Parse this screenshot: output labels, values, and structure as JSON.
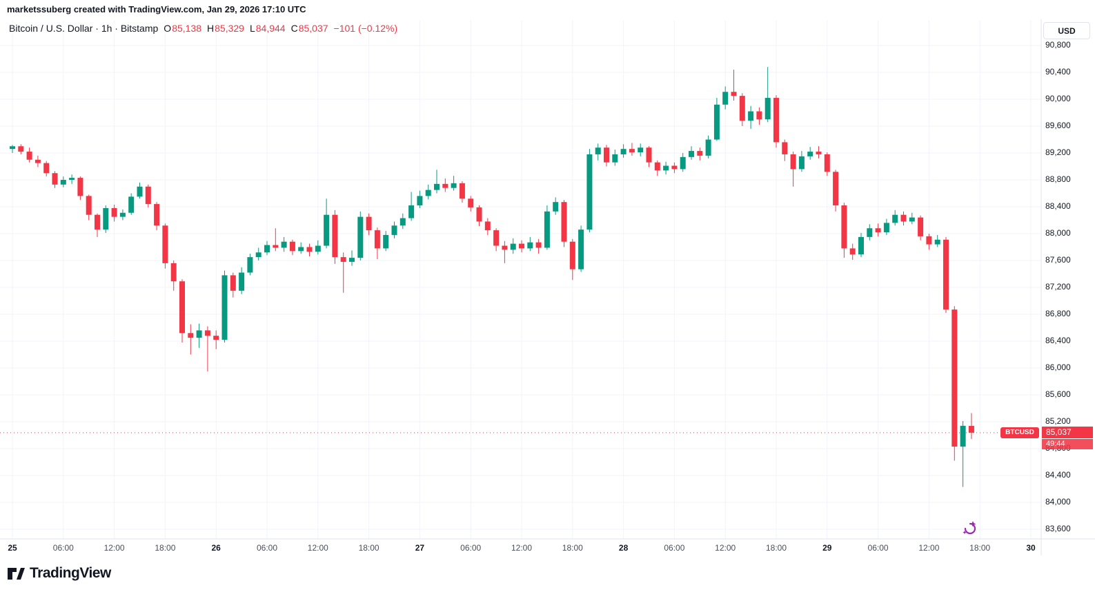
{
  "attribution": "marketssuberg created with TradingView.com, Jan 29, 2026 17:10 UTC",
  "header": {
    "series_line": "Bitcoin / U.S. Dollar · 1h · Bitstamp",
    "o_label": "O",
    "o_value": "85,138",
    "h_label": "H",
    "h_value": "85,329",
    "l_label": "L",
    "l_value": "84,944",
    "c_label": "C",
    "c_value": "85,037",
    "change": "−101 (−0.12%)"
  },
  "price_axis": {
    "currency": "USD",
    "badge": {
      "symbol": "BTCUSD",
      "price": "85,037",
      "countdown": "49:44"
    }
  },
  "footer": {
    "logo_text": "TradingView"
  },
  "colors": {
    "up": "#089981",
    "down": "#F23645",
    "text": "#131722",
    "muted": "#4a4e59",
    "grid": "#F0F3FA",
    "axis_border": "#E0E3EB",
    "purple": "#9C27B0"
  },
  "chart_data": {
    "type": "candlestick",
    "title": "Bitcoin / U.S. Dollar",
    "symbol": "BTCUSD",
    "interval": "1h",
    "exchange": "Bitstamp",
    "unit": "USD",
    "last_price": 85037,
    "current_ohlc": {
      "open": 85138,
      "high": 85329,
      "low": 84944,
      "close": 85037,
      "change": -101,
      "change_pct": -0.12
    },
    "y_range": [
      83600,
      90800
    ],
    "y_step": 400,
    "grid": true,
    "y_ticks": [
      "90,800",
      "90,400",
      "90,000",
      "89,600",
      "89,200",
      "88,800",
      "88,400",
      "88,000",
      "87,600",
      "87,200",
      "86,800",
      "86,400",
      "86,000",
      "85,600",
      "85,200",
      "84,800",
      "84,400",
      "84,000",
      "83,600"
    ],
    "x_ticks": [
      {
        "text": "25",
        "index": 0,
        "major": true
      },
      {
        "text": "06:00",
        "index": 6,
        "major": false
      },
      {
        "text": "12:00",
        "index": 12,
        "major": false
      },
      {
        "text": "18:00",
        "index": 18,
        "major": false
      },
      {
        "text": "26",
        "index": 24,
        "major": true
      },
      {
        "text": "06:00",
        "index": 30,
        "major": false
      },
      {
        "text": "12:00",
        "index": 36,
        "major": false
      },
      {
        "text": "18:00",
        "index": 42,
        "major": false
      },
      {
        "text": "27",
        "index": 48,
        "major": true
      },
      {
        "text": "06:00",
        "index": 54,
        "major": false
      },
      {
        "text": "12:00",
        "index": 60,
        "major": false
      },
      {
        "text": "18:00",
        "index": 66,
        "major": false
      },
      {
        "text": "28",
        "index": 72,
        "major": true
      },
      {
        "text": "06:00",
        "index": 78,
        "major": false
      },
      {
        "text": "12:00",
        "index": 84,
        "major": false
      },
      {
        "text": "18:00",
        "index": 90,
        "major": false
      },
      {
        "text": "29",
        "index": 96,
        "major": true
      },
      {
        "text": "06:00",
        "index": 102,
        "major": false
      },
      {
        "text": "12:00",
        "index": 108,
        "major": false
      },
      {
        "text": "18:00",
        "index": 114,
        "major": false
      },
      {
        "text": "30",
        "index": 120,
        "major": true
      }
    ],
    "first_candle_time": "Jan 25 00:00",
    "candles": [
      [
        89260,
        89320,
        89200,
        89300
      ],
      [
        89300,
        89330,
        89180,
        89220
      ],
      [
        89220,
        89280,
        89060,
        89100
      ],
      [
        89100,
        89160,
        88990,
        89050
      ],
      [
        89050,
        89080,
        88850,
        88900
      ],
      [
        88900,
        88930,
        88680,
        88730
      ],
      [
        88730,
        88850,
        88690,
        88800
      ],
      [
        88800,
        88880,
        88740,
        88830
      ],
      [
        88830,
        88850,
        88500,
        88560
      ],
      [
        88560,
        88580,
        88200,
        88280
      ],
      [
        88280,
        88300,
        87950,
        88060
      ],
      [
        88060,
        88420,
        88010,
        88380
      ],
      [
        88380,
        88430,
        88180,
        88250
      ],
      [
        88250,
        88360,
        88200,
        88310
      ],
      [
        88310,
        88600,
        88280,
        88550
      ],
      [
        88550,
        88760,
        88520,
        88700
      ],
      [
        88700,
        88730,
        88390,
        88440
      ],
      [
        88440,
        88470,
        88050,
        88120
      ],
      [
        88120,
        88150,
        87480,
        87560
      ],
      [
        87560,
        87600,
        87150,
        87290
      ],
      [
        87290,
        87320,
        86380,
        86520
      ],
      [
        86520,
        86650,
        86200,
        86450
      ],
      [
        86450,
        86660,
        86300,
        86560
      ],
      [
        86560,
        86620,
        85950,
        86480
      ],
      [
        86480,
        86560,
        86280,
        86420
      ],
      [
        86420,
        87450,
        86380,
        87380
      ],
      [
        87380,
        87420,
        87050,
        87150
      ],
      [
        87150,
        87500,
        87100,
        87420
      ],
      [
        87420,
        87700,
        87380,
        87650
      ],
      [
        87650,
        87790,
        87600,
        87720
      ],
      [
        87720,
        87890,
        87680,
        87830
      ],
      [
        87830,
        88080,
        87740,
        87790
      ],
      [
        87790,
        87950,
        87730,
        87880
      ],
      [
        87880,
        87910,
        87680,
        87740
      ],
      [
        87740,
        87870,
        87700,
        87800
      ],
      [
        87800,
        87850,
        87660,
        87730
      ],
      [
        87730,
        87900,
        87690,
        87820
      ],
      [
        87820,
        88520,
        87780,
        88280
      ],
      [
        88280,
        88350,
        87550,
        87650
      ],
      [
        87650,
        87720,
        87120,
        87580
      ],
      [
        87580,
        87750,
        87520,
        87640
      ],
      [
        87640,
        88330,
        87600,
        88250
      ],
      [
        88250,
        88300,
        87980,
        88050
      ],
      [
        88050,
        88090,
        87620,
        87780
      ],
      [
        87780,
        88040,
        87740,
        87980
      ],
      [
        87980,
        88180,
        87930,
        88120
      ],
      [
        88120,
        88300,
        88070,
        88230
      ],
      [
        88230,
        88620,
        88190,
        88420
      ],
      [
        88420,
        88640,
        88380,
        88560
      ],
      [
        88560,
        88730,
        88510,
        88650
      ],
      [
        88650,
        88950,
        88600,
        88740
      ],
      [
        88740,
        88820,
        88620,
        88680
      ],
      [
        88680,
        88860,
        88640,
        88750
      ],
      [
        88750,
        88780,
        88460,
        88520
      ],
      [
        88520,
        88560,
        88330,
        88390
      ],
      [
        88390,
        88420,
        88110,
        88180
      ],
      [
        88180,
        88230,
        87980,
        88050
      ],
      [
        88050,
        88080,
        87740,
        87820
      ],
      [
        87820,
        87890,
        87560,
        87760
      ],
      [
        87760,
        87930,
        87700,
        87850
      ],
      [
        87850,
        87900,
        87720,
        87780
      ],
      [
        87780,
        87950,
        87740,
        87870
      ],
      [
        87870,
        87920,
        87700,
        87790
      ],
      [
        87790,
        88420,
        87760,
        88330
      ],
      [
        88330,
        88540,
        88280,
        88470
      ],
      [
        88470,
        88500,
        87800,
        87880
      ],
      [
        87880,
        87920,
        87310,
        87470
      ],
      [
        87470,
        88120,
        87430,
        88060
      ],
      [
        88060,
        89260,
        88020,
        89180
      ],
      [
        89180,
        89340,
        89090,
        89280
      ],
      [
        89280,
        89320,
        89000,
        89060
      ],
      [
        89060,
        89250,
        89010,
        89180
      ],
      [
        89180,
        89330,
        89130,
        89260
      ],
      [
        89260,
        89350,
        89160,
        89210
      ],
      [
        89210,
        89340,
        89150,
        89280
      ],
      [
        89280,
        89300,
        88990,
        89060
      ],
      [
        89060,
        89090,
        88860,
        88940
      ],
      [
        88940,
        89070,
        88880,
        89010
      ],
      [
        89010,
        89060,
        88900,
        88960
      ],
      [
        88960,
        89200,
        88920,
        89140
      ],
      [
        89140,
        89300,
        89100,
        89230
      ],
      [
        89230,
        89280,
        89090,
        89160
      ],
      [
        89160,
        89460,
        89120,
        89400
      ],
      [
        89400,
        90020,
        89380,
        89920
      ],
      [
        89920,
        90190,
        89850,
        90110
      ],
      [
        90110,
        90440,
        89980,
        90050
      ],
      [
        90050,
        90090,
        89600,
        89680
      ],
      [
        89680,
        89900,
        89560,
        89820
      ],
      [
        89820,
        89880,
        89620,
        89700
      ],
      [
        89700,
        90480,
        89660,
        90020
      ],
      [
        90020,
        90060,
        89280,
        89360
      ],
      [
        89360,
        89400,
        89080,
        89180
      ],
      [
        89180,
        89220,
        88700,
        88960
      ],
      [
        88960,
        89230,
        88920,
        89150
      ],
      [
        89150,
        89290,
        89100,
        89220
      ],
      [
        89220,
        89300,
        89120,
        89180
      ],
      [
        89180,
        89210,
        88860,
        88920
      ],
      [
        88920,
        88950,
        88330,
        88420
      ],
      [
        88420,
        88460,
        87640,
        87780
      ],
      [
        87780,
        87850,
        87610,
        87690
      ],
      [
        87690,
        88010,
        87650,
        87950
      ],
      [
        87950,
        88140,
        87900,
        88080
      ],
      [
        88080,
        88150,
        87960,
        88020
      ],
      [
        88020,
        88220,
        87980,
        88160
      ],
      [
        88160,
        88350,
        88120,
        88280
      ],
      [
        88280,
        88330,
        88120,
        88180
      ],
      [
        88180,
        88310,
        88140,
        88240
      ],
      [
        88240,
        88270,
        87900,
        87960
      ],
      [
        87960,
        88000,
        87760,
        87840
      ],
      [
        87840,
        87980,
        87800,
        87910
      ],
      [
        87910,
        87950,
        86820,
        86870
      ],
      [
        86870,
        86920,
        84620,
        84830
      ],
      [
        84830,
        85210,
        84230,
        85140
      ],
      [
        85138,
        85329,
        84944,
        85037
      ]
    ]
  }
}
